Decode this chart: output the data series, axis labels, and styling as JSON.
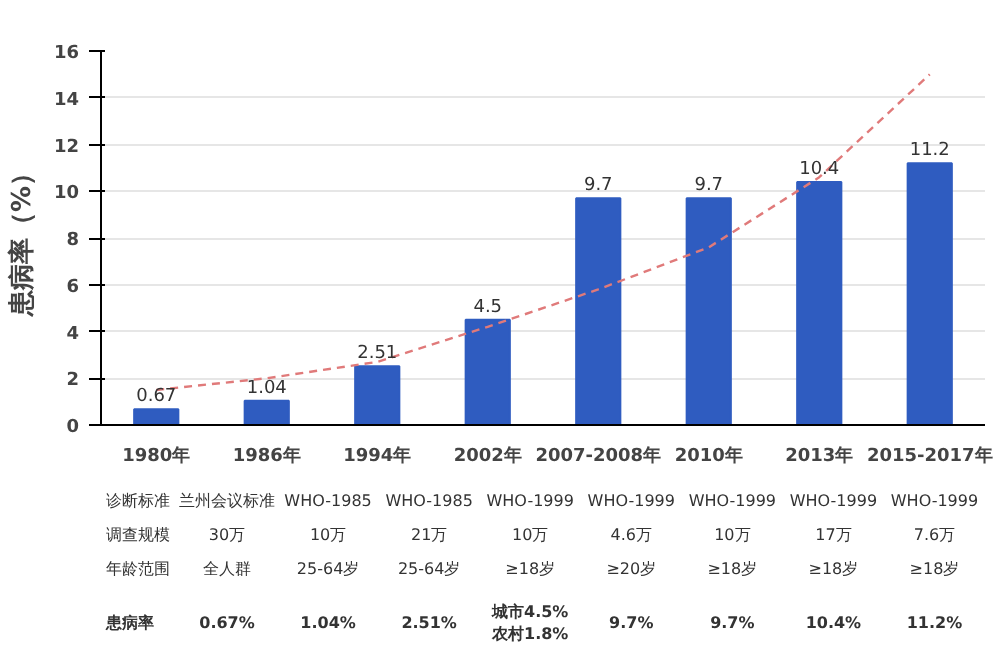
{
  "chart_data": {
    "type": "bar",
    "ylabel": "患病率（%）",
    "categories": [
      "1980年",
      "1986年",
      "1994年",
      "2002年",
      "2007-2008年",
      "2010年",
      "2013年",
      "2015-2017年"
    ],
    "series": [
      {
        "color": "#2f5cc0",
        "values": [
          0.67,
          1.04,
          2.51,
          4.5,
          9.7,
          9.7,
          10.4,
          11.2
        ],
        "value_labels": [
          "0.67",
          "1.04",
          "2.51",
          "4.5",
          "9.7",
          "9.7",
          "10.4",
          "11.2"
        ]
      },
      {
        "type": "line",
        "color": "#e07a7a",
        "line_style": "dashed",
        "values": [
          1.5,
          2.0,
          2.7,
          4.2,
          5.8,
          7.6,
          10.6,
          15.0
        ]
      }
    ],
    "ylim": [
      0,
      16
    ],
    "yticks": [
      0,
      2,
      4,
      6,
      8,
      10,
      12,
      14,
      16
    ],
    "grid": "y",
    "annotations": [
      "诊断标准",
      "兰州会议标准",
      "WHO-1985",
      "WHO-1985",
      "WHO-1999",
      "WHO-1999",
      "WHO-1999",
      "WHO-1999",
      "WHO-1999",
      "调查规模",
      "30万",
      "10万",
      "21万",
      "10万",
      "4.6万",
      "10万",
      "17万",
      "7.6万",
      "年龄范围",
      "全人群",
      "25-64岁",
      "25-64岁",
      "≥18岁",
      "≥20岁",
      "≥18岁",
      "≥18岁",
      "≥18岁",
      "患病率",
      "0.67%",
      "1.04%",
      "2.51%",
      "城市4.5%\n农村1.8%",
      "9.7%",
      "9.7%",
      "10.4%",
      "11.2%"
    ]
  }
}
